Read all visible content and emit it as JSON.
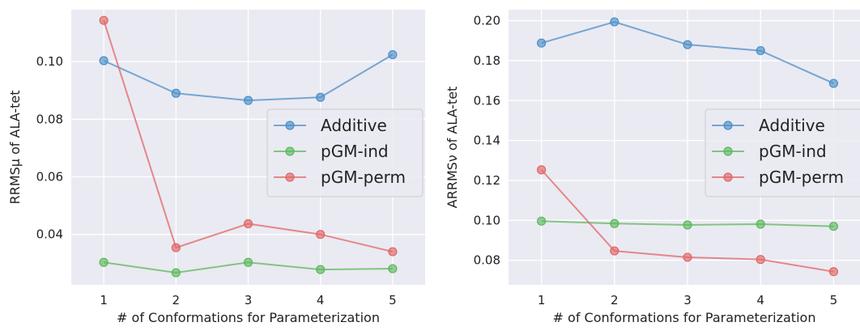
{
  "chart_data": [
    {
      "type": "line",
      "title": "",
      "xlabel": "# of Conformations for Parameterization",
      "ylabel": "RRMSμ of ALA-tet",
      "x": [
        1,
        2,
        3,
        4,
        5
      ],
      "xticks": [
        "1",
        "2",
        "3",
        "4",
        "5"
      ],
      "xlim": [
        0.55,
        5.45
      ],
      "ylim": [
        0.0225,
        0.118
      ],
      "yticks": [
        0.04,
        0.06,
        0.08,
        0.1
      ],
      "ytick_labels": [
        "0.04",
        "0.06",
        "0.08",
        "0.10"
      ],
      "grid": true,
      "legend": "center-right",
      "series": [
        {
          "name": "Additive",
          "color": "#4c8fc8",
          "values": [
            0.1003,
            0.089,
            0.0865,
            0.0876,
            0.1024
          ]
        },
        {
          "name": "pGM-ind",
          "color": "#5cb85c",
          "values": [
            0.0303,
            0.0267,
            0.0303,
            0.0278,
            0.0281
          ]
        },
        {
          "name": "pGM-perm",
          "color": "#e06666",
          "values": [
            0.1143,
            0.0354,
            0.0437,
            0.04,
            0.034
          ]
        }
      ]
    },
    {
      "type": "line",
      "title": "",
      "xlabel": "# of Conformations for Parameterization",
      "ylabel": "ARRMSν of ALA-tet",
      "x": [
        1,
        2,
        3,
        4,
        5
      ],
      "xticks": [
        "1",
        "2",
        "3",
        "4",
        "5"
      ],
      "xlim": [
        0.55,
        5.45
      ],
      "ylim": [
        0.0677,
        0.2055
      ],
      "yticks": [
        0.08,
        0.1,
        0.12,
        0.14,
        0.16,
        0.18,
        0.2
      ],
      "ytick_labels": [
        "0.08",
        "0.10",
        "0.12",
        "0.14",
        "0.16",
        "0.18",
        "0.20"
      ],
      "grid": true,
      "legend": "center-right",
      "series": [
        {
          "name": "Additive",
          "color": "#4c8fc8",
          "values": [
            0.1888,
            0.1994,
            0.188,
            0.185,
            0.1686
          ]
        },
        {
          "name": "pGM-ind",
          "color": "#5cb85c",
          "values": [
            0.0996,
            0.0984,
            0.0977,
            0.0981,
            0.097
          ]
        },
        {
          "name": "pGM-perm",
          "color": "#e06666",
          "values": [
            0.1253,
            0.0847,
            0.0815,
            0.0804,
            0.0743
          ]
        }
      ]
    }
  ]
}
